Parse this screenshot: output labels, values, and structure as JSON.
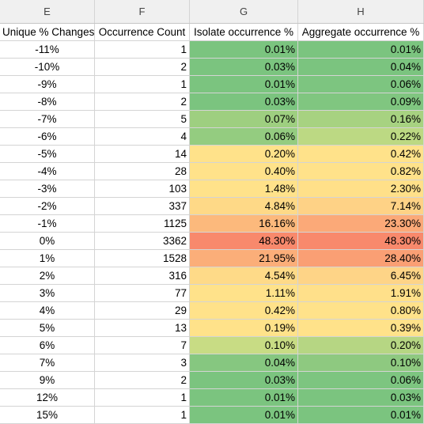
{
  "column_letters": [
    "E",
    "F",
    "G",
    "H"
  ],
  "headers": [
    "Unique % Changes",
    "Occurrence Count",
    "Isolate occurrence %",
    "Aggregate occurrence %"
  ],
  "scale_colors": {
    "low": "#7bc47f",
    "mid": "#ffe28a",
    "high": "#f8896c"
  },
  "rows": [
    {
      "change": "-11%",
      "count": "1",
      "isolate": "0.01%",
      "aggregate": "0.01%",
      "g_color": "#7bc47f",
      "h_color": "#7bc47f"
    },
    {
      "change": "-10%",
      "count": "2",
      "isolate": "0.03%",
      "aggregate": "0.04%",
      "g_color": "#7bc47f",
      "h_color": "#7bc47f"
    },
    {
      "change": "-9%",
      "count": "1",
      "isolate": "0.01%",
      "aggregate": "0.06%",
      "g_color": "#7bc47f",
      "h_color": "#7dc580"
    },
    {
      "change": "-8%",
      "count": "2",
      "isolate": "0.03%",
      "aggregate": "0.09%",
      "g_color": "#7bc47f",
      "h_color": "#80c680"
    },
    {
      "change": "-7%",
      "count": "5",
      "isolate": "0.07%",
      "aggregate": "0.16%",
      "g_color": "#9ecf80",
      "h_color": "#a7d281"
    },
    {
      "change": "-6%",
      "count": "4",
      "isolate": "0.06%",
      "aggregate": "0.22%",
      "g_color": "#94cc80",
      "h_color": "#bcd983"
    },
    {
      "change": "-5%",
      "count": "14",
      "isolate": "0.20%",
      "aggregate": "0.42%",
      "g_color": "#ffe28a",
      "h_color": "#ffe28a"
    },
    {
      "change": "-4%",
      "count": "28",
      "isolate": "0.40%",
      "aggregate": "0.82%",
      "g_color": "#ffe28a",
      "h_color": "#ffe28a"
    },
    {
      "change": "-3%",
      "count": "103",
      "isolate": "1.48%",
      "aggregate": "2.30%",
      "g_color": "#ffe28a",
      "h_color": "#ffe089"
    },
    {
      "change": "-2%",
      "count": "337",
      "isolate": "4.84%",
      "aggregate": "7.14%",
      "g_color": "#fed987",
      "h_color": "#fed286"
    },
    {
      "change": "-1%",
      "count": "1125",
      "isolate": "16.16%",
      "aggregate": "23.30%",
      "g_color": "#fcb97c",
      "h_color": "#fba978"
    },
    {
      "change": "0%",
      "count": "3362",
      "isolate": "48.30%",
      "aggregate": "48.30%",
      "g_color": "#f8896c",
      "h_color": "#f8896c"
    },
    {
      "change": "1%",
      "count": "1528",
      "isolate": "21.95%",
      "aggregate": "28.40%",
      "g_color": "#fbae79",
      "h_color": "#fa9f74"
    },
    {
      "change": "2%",
      "count": "316",
      "isolate": "4.54%",
      "aggregate": "6.45%",
      "g_color": "#feda88",
      "h_color": "#fed487"
    },
    {
      "change": "3%",
      "count": "77",
      "isolate": "1.11%",
      "aggregate": "1.91%",
      "g_color": "#ffe28a",
      "h_color": "#ffe08a"
    },
    {
      "change": "4%",
      "count": "29",
      "isolate": "0.42%",
      "aggregate": "0.80%",
      "g_color": "#ffe28a",
      "h_color": "#ffe28a"
    },
    {
      "change": "5%",
      "count": "13",
      "isolate": "0.19%",
      "aggregate": "0.39%",
      "g_color": "#ffe28a",
      "h_color": "#ffe28a"
    },
    {
      "change": "6%",
      "count": "7",
      "isolate": "0.10%",
      "aggregate": "0.20%",
      "g_color": "#c8dc84",
      "h_color": "#b6d683"
    },
    {
      "change": "7%",
      "count": "3",
      "isolate": "0.04%",
      "aggregate": "0.10%",
      "g_color": "#86c780",
      "h_color": "#8ec980"
    },
    {
      "change": "9%",
      "count": "2",
      "isolate": "0.03%",
      "aggregate": "0.06%",
      "g_color": "#7bc47f",
      "h_color": "#7dc580"
    },
    {
      "change": "12%",
      "count": "1",
      "isolate": "0.01%",
      "aggregate": "0.03%",
      "g_color": "#7bc47f",
      "h_color": "#7bc47f"
    },
    {
      "change": "15%",
      "count": "1",
      "isolate": "0.01%",
      "aggregate": "0.01%",
      "g_color": "#7bc47f",
      "h_color": "#7bc47f"
    }
  ]
}
